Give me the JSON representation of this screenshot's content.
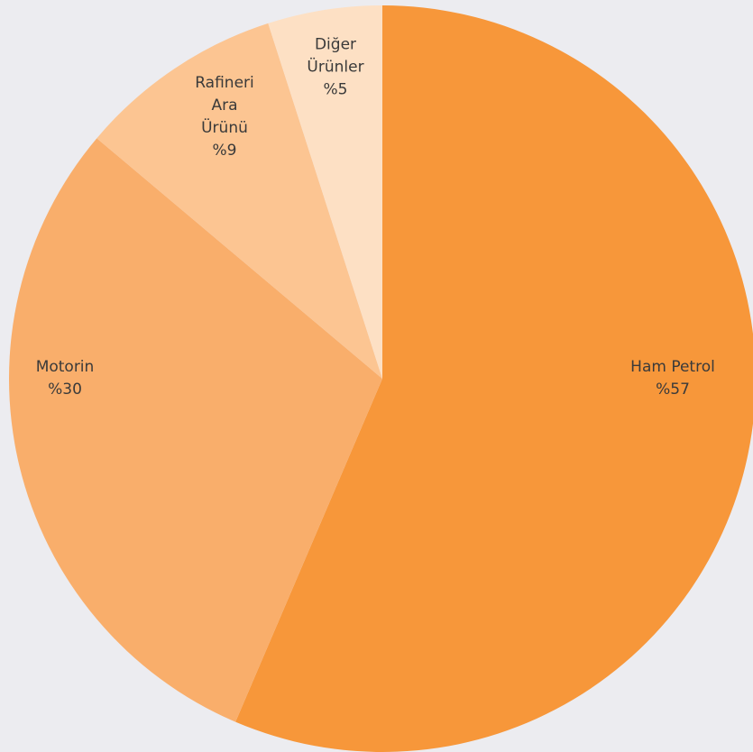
{
  "chart_data": {
    "type": "pie",
    "categories": [
      "Ham Petrol",
      "Motorin",
      "Rafineri Ara Ürünü",
      "Diğer Ürünler"
    ],
    "values": [
      57,
      30,
      9,
      5
    ],
    "value_labels": [
      "%57",
      "%30",
      "%9",
      "%5"
    ],
    "colors": [
      "#f7973a",
      "#f9ae6b",
      "#fcc592",
      "#fde0c4"
    ]
  }
}
